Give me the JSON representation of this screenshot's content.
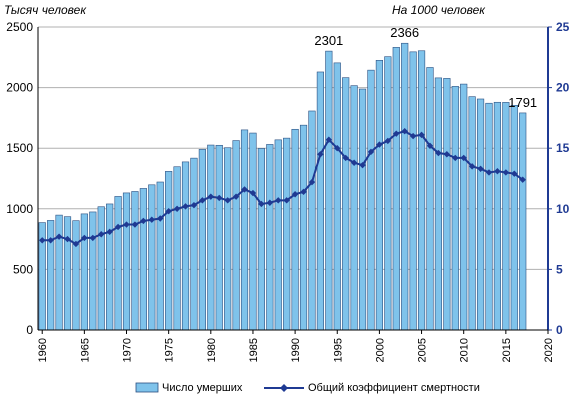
{
  "chart_data": {
    "type": "bar",
    "left_axis_label": "Тысяч человек",
    "right_axis_label": "На 1000 человек",
    "years": [
      1960,
      1961,
      1962,
      1963,
      1964,
      1965,
      1966,
      1967,
      1968,
      1969,
      1970,
      1971,
      1972,
      1973,
      1974,
      1975,
      1976,
      1977,
      1978,
      1979,
      1980,
      1981,
      1982,
      1983,
      1984,
      1985,
      1986,
      1987,
      1988,
      1989,
      1990,
      1991,
      1992,
      1993,
      1994,
      1995,
      1996,
      1997,
      1998,
      1999,
      2000,
      2001,
      2002,
      2003,
      2004,
      2005,
      2006,
      2007,
      2008,
      2009,
      2010,
      2011,
      2012,
      2013,
      2014,
      2015,
      2016,
      2017
    ],
    "x_ticks": [
      "1960",
      "1965",
      "1970",
      "1975",
      "1980",
      "1985",
      "1990",
      "1995",
      "2000",
      "2005",
      "2010",
      "2015",
      "2020"
    ],
    "left_ticks": [
      "0",
      "500",
      "1000",
      "1500",
      "2000",
      "2500"
    ],
    "right_ticks": [
      "0",
      "5",
      "10",
      "15",
      "20",
      "25"
    ],
    "ylim_left": [
      0,
      2500
    ],
    "ylim_right": [
      0,
      25
    ],
    "xlim": [
      1959.5,
      2020
    ],
    "series": [
      {
        "name": "Число умерших",
        "type": "bar",
        "color": "#7fc3eb",
        "values": [
          886,
          904,
          948,
          935,
          902,
          958,
          974,
          1017,
          1040,
          1102,
          1131,
          1143,
          1168,
          1198,
          1221,
          1309,
          1347,
          1387,
          1418,
          1490,
          1526,
          1524,
          1504,
          1563,
          1651,
          1625,
          1498,
          1531,
          1569,
          1583,
          1656,
          1690,
          1807,
          2129,
          2301,
          2204,
          2082,
          2016,
          1988,
          2144,
          2225,
          2255,
          2332,
          2366,
          2295,
          2304,
          2166,
          2080,
          2076,
          2010,
          2029,
          1925,
          1906,
          1871,
          1879,
          1878,
          1854,
          1791
        ],
        "axis": "left"
      },
      {
        "name": "Общий коэффициент смертности",
        "type": "line",
        "color": "#1f3a93",
        "values": [
          7.4,
          7.4,
          7.7,
          7.5,
          7.1,
          7.6,
          7.6,
          7.9,
          8.1,
          8.5,
          8.7,
          8.7,
          9.0,
          9.1,
          9.2,
          9.8,
          10.0,
          10.2,
          10.3,
          10.7,
          11.0,
          10.9,
          10.7,
          11.0,
          11.6,
          11.3,
          10.4,
          10.5,
          10.7,
          10.7,
          11.2,
          11.4,
          12.2,
          14.5,
          15.7,
          15.0,
          14.2,
          13.8,
          13.6,
          14.7,
          15.3,
          15.6,
          16.2,
          16.4,
          16.0,
          16.1,
          15.2,
          14.6,
          14.5,
          14.2,
          14.2,
          13.5,
          13.3,
          13.0,
          13.1,
          13.0,
          12.9,
          12.4
        ],
        "axis": "right"
      }
    ],
    "annotations": [
      {
        "text": "2301",
        "year": 1994,
        "value": 2301
      },
      {
        "text": "2366",
        "year": 2003,
        "value": 2366
      },
      {
        "text": "1791",
        "year": 2017,
        "value": 1791
      }
    ],
    "legend": {
      "placement": "bottom",
      "items": [
        {
          "label": "Число умерших",
          "kind": "bar"
        },
        {
          "label": "Общий коэффициент смертности",
          "kind": "line"
        }
      ]
    },
    "grid": "horizontal"
  },
  "colors": {
    "bar_fill": "#7fc3eb",
    "bar_stroke": "#2b4f80",
    "line": "#1f3a93",
    "right_axis": "#1f3a93",
    "grid": "#b0b0b0"
  }
}
